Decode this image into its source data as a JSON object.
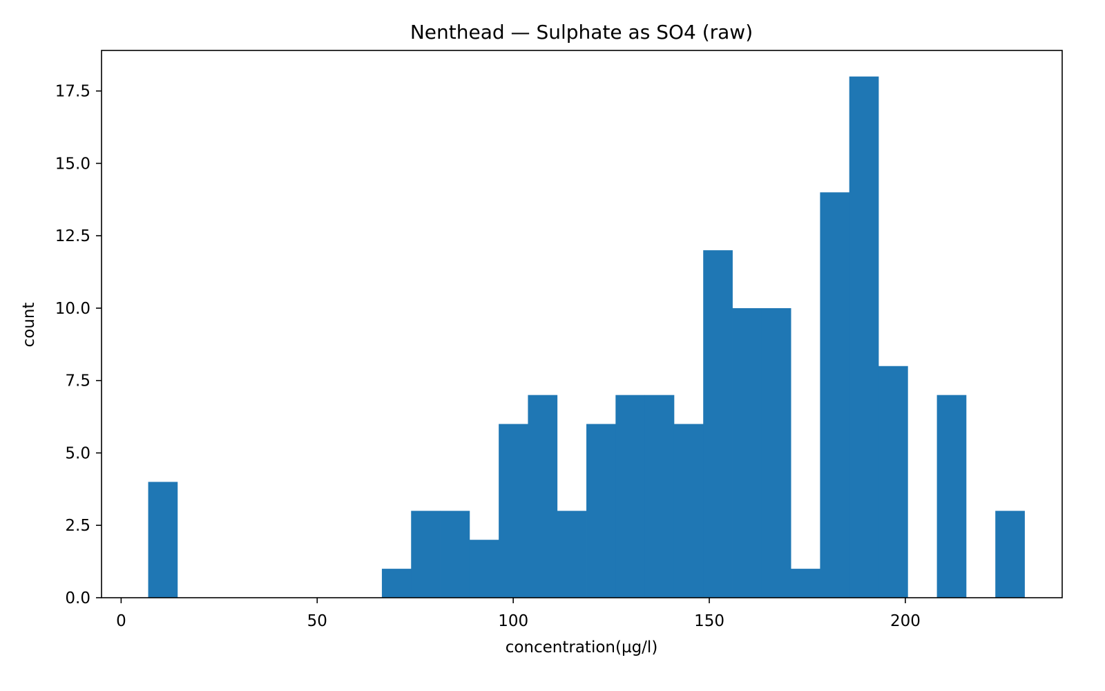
{
  "chart_data": {
    "type": "bar",
    "title": "Nenthead — Sulphate as SO4 (raw)",
    "xlabel": "concentration(µg/l)",
    "ylabel": "count",
    "xlim": [
      -5,
      240
    ],
    "ylim": [
      0,
      18.9
    ],
    "x_ticks": [
      0,
      50,
      100,
      150,
      200
    ],
    "y_ticks": [
      0.0,
      2.5,
      5.0,
      7.5,
      10.0,
      12.5,
      15.0,
      17.5
    ],
    "bin_edges": [
      6.9,
      14.35,
      21.8,
      29.25,
      36.7,
      44.15,
      51.6,
      59.05,
      66.5,
      73.95,
      81.4,
      88.85,
      96.3,
      103.75,
      111.2,
      118.65,
      126.1,
      133.55,
      141.0,
      148.45,
      155.9,
      163.35,
      170.8,
      178.25,
      185.7,
      193.15,
      200.6,
      208.05,
      215.5,
      222.95,
      230.4
    ],
    "counts": [
      4,
      0,
      0,
      0,
      0,
      0,
      0,
      0,
      1,
      3,
      3,
      2,
      6,
      7,
      3,
      6,
      7,
      7,
      6,
      12,
      10,
      10,
      1,
      14,
      18,
      8,
      0,
      7,
      0,
      3
    ],
    "grid": false,
    "legend": "none",
    "colors": {
      "bar": "#1f77b4",
      "axes": "#000000",
      "background": "#ffffff"
    }
  }
}
